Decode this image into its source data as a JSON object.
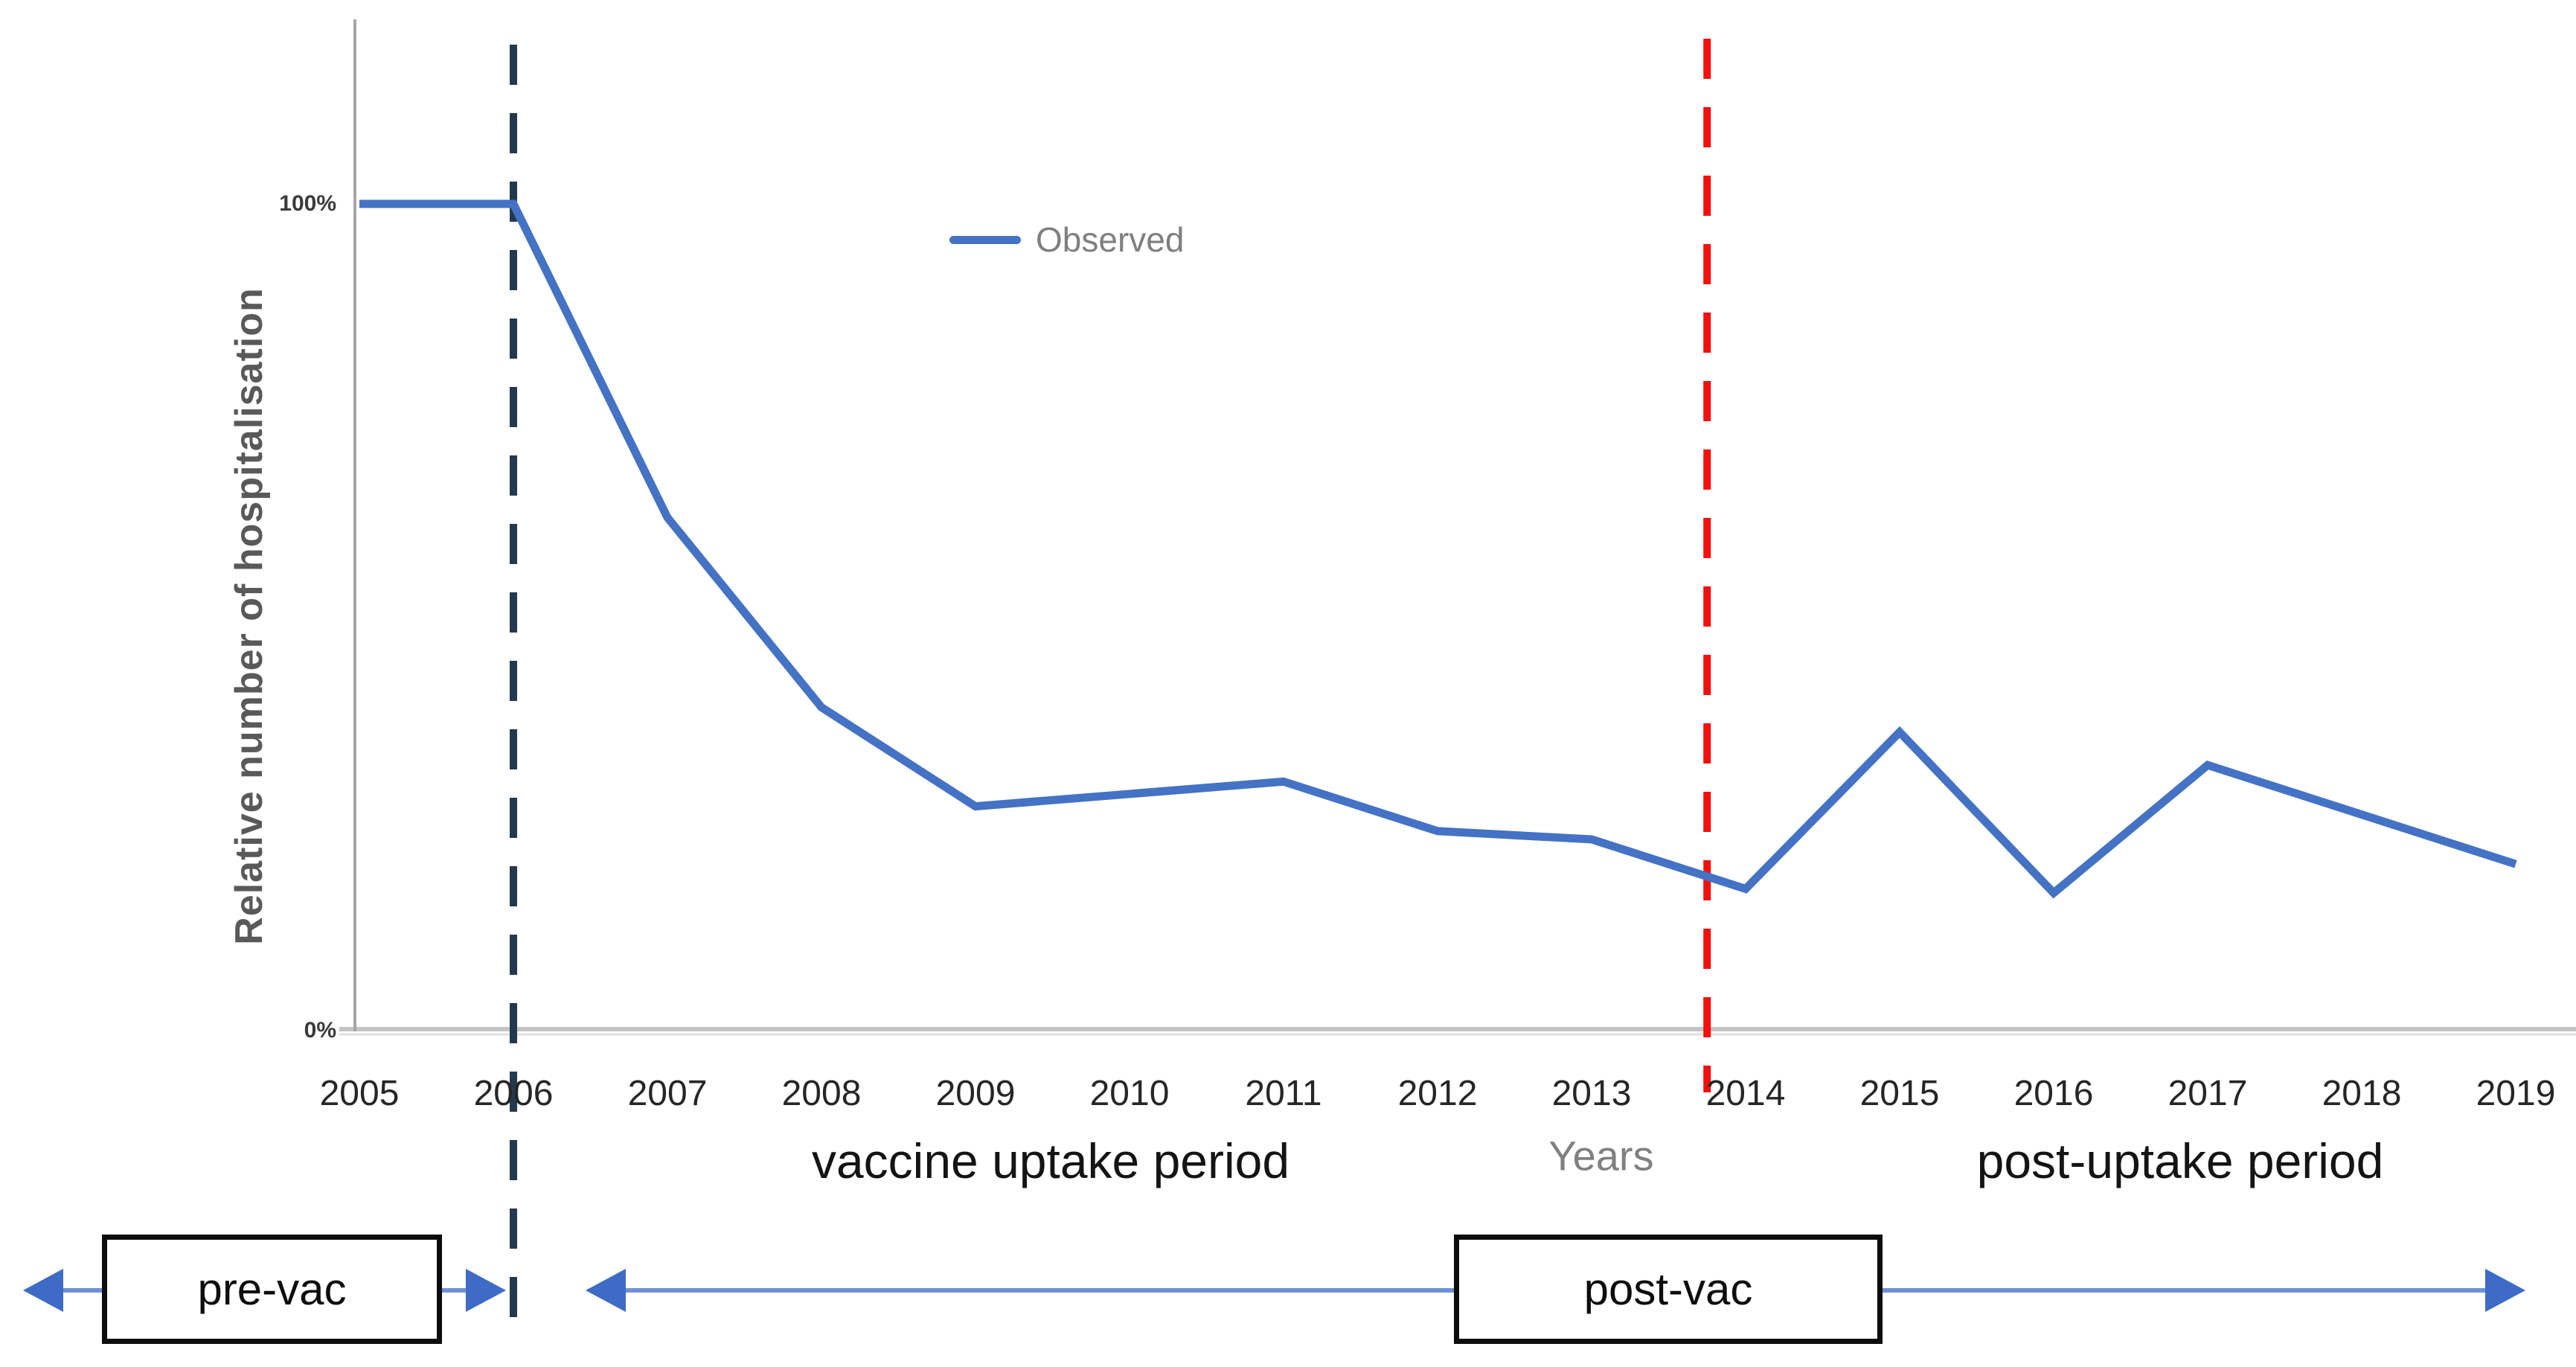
{
  "chart_data": {
    "type": "line",
    "title": "",
    "x": [
      2005,
      2006,
      2007,
      2008,
      2009,
      2010,
      2011,
      2012,
      2013,
      2014,
      2015,
      2016,
      2017,
      2018,
      2019
    ],
    "series": [
      {
        "name": "Observed",
        "values": [
          100,
          100,
          62,
          39,
          27,
          28.5,
          30,
          24,
          23,
          17,
          36,
          16.5,
          32,
          26,
          20
        ]
      }
    ],
    "xlabel": "Years",
    "ylabel": "Relative number of hospitalisation",
    "ylim": [
      0,
      122
    ],
    "y_tick_labels": [
      "100%",
      "0%"
    ],
    "grid": false,
    "legend_position": "top-center",
    "vlines": [
      {
        "name": "vaccine-introduction-marker",
        "x": 2006,
        "style": "dashed",
        "color": "#24384F"
      },
      {
        "name": "uptake-period-end-marker",
        "x": 2013.75,
        "style": "dashed",
        "color": "#F2100F"
      }
    ]
  },
  "y_axis": {
    "title": "Relative number of hospitalisation",
    "tick_100": "100%",
    "tick_0": "0%"
  },
  "x_axis": {
    "title": "Years",
    "ticks": [
      "2005",
      "2006",
      "2007",
      "2008",
      "2009",
      "2010",
      "2011",
      "2012",
      "2013",
      "2014",
      "2015",
      "2016",
      "2017",
      "2018",
      "2019"
    ]
  },
  "legend": {
    "observed": "Observed"
  },
  "annotations": {
    "vaccine_uptake_period": "vaccine uptake period",
    "post_uptake_period": "post-uptake period",
    "pre_vac": "pre-vac",
    "post_vac": "post-vac"
  },
  "colors": {
    "series": "#4472C4",
    "dark_dashed": "#24384F",
    "red_dashed": "#F2100F",
    "arrow_head": "#3E6BC5",
    "arrow_line": "#6E91D6",
    "x_axis_line": "#C4C4C4",
    "x_axis_line_2": "#E0E0E0",
    "y_axis_line": "#A6A6A6"
  }
}
